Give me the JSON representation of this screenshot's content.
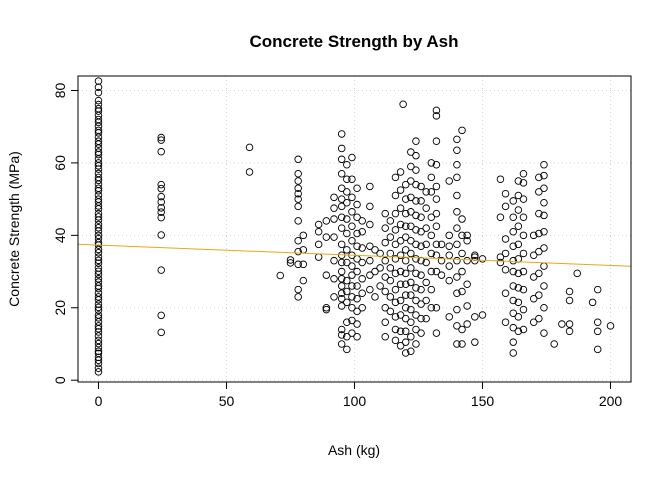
{
  "chart_data": {
    "type": "scatter",
    "title": "Concrete Strength by Ash",
    "xlabel": "Ash (kg)",
    "ylabel": "Concrete Strength (MPa)",
    "xlim": [
      -8,
      208
    ],
    "ylim": [
      -0.5,
      84
    ],
    "xticks": [
      0,
      50,
      100,
      150,
      200
    ],
    "yticks": [
      0,
      20,
      40,
      60,
      80
    ],
    "grid": true,
    "point_style": "open-circle",
    "trend_line": {
      "color": "#E6A817",
      "intercept": 37.3,
      "slope": -0.028
    },
    "columns": [
      {
        "x": 0,
        "y": [
          2.3,
          3.3,
          4.6,
          5.5,
          6.3,
          7.4,
          8.0,
          9.0,
          10.1,
          11.0,
          12.2,
          13.3,
          14.2,
          15.0,
          16.1,
          17.2,
          18.0,
          19.3,
          20.1,
          21.0,
          22.2,
          23.0,
          24.1,
          25.3,
          26.0,
          27.1,
          28.0,
          29.2,
          30.1,
          31.0,
          32.3,
          33.1,
          34.0,
          35.2,
          36.1,
          37.3,
          38.0,
          39.1,
          40.0,
          41.2,
          42.1,
          43.0,
          44.2,
          45.1,
          46.0,
          47.3,
          48.1,
          49.2,
          50.0,
          51.1,
          52.3,
          53.0,
          54.1,
          55.2,
          56.0,
          57.1,
          58.3,
          59.2,
          60.0,
          61.1,
          62.3,
          63.0,
          64.1,
          65.2,
          66.0,
          67.1,
          68.3,
          69.0,
          70.1,
          71.2,
          72.0,
          73.1,
          74.3,
          75.0,
          76.1,
          77.2,
          79.4,
          80.9,
          82.6
        ]
      },
      {
        "x": 24.5,
        "y": [
          13.2,
          17.9,
          30.4,
          40.1,
          44.9,
          46.4,
          47.6,
          49.2,
          50.7,
          52.9,
          54.0,
          63.1,
          66.3,
          67.0
        ]
      },
      {
        "x": 59,
        "y": [
          57.5,
          64.3
        ]
      },
      {
        "x": 71,
        "y": [
          28.9
        ]
      },
      {
        "x": 75,
        "y": [
          32.4,
          33.2
        ]
      },
      {
        "x": 78,
        "y": [
          23.0,
          25.0,
          32.0,
          35.5,
          38.5,
          44.0,
          48.0,
          50.0,
          51.5,
          53.0,
          55.0,
          57.0,
          61.0
        ]
      },
      {
        "x": 80,
        "y": [
          27.5,
          32.0,
          36.0,
          40.0
        ]
      },
      {
        "x": 86,
        "y": [
          34.0,
          37.5,
          41.0,
          43.0
        ]
      },
      {
        "x": 89,
        "y": [
          19.5,
          20.0,
          29.0,
          39.5,
          44.0
        ]
      },
      {
        "x": 92,
        "y": [
          23.0,
          28.0,
          33.0,
          39.5,
          44.5,
          47.5,
          50.5
        ]
      },
      {
        "x": 95,
        "y": [
          10.0,
          12.5,
          14.0,
          20.5,
          22.5,
          24.0,
          26.0,
          28.0,
          30.0,
          32.5,
          34.5,
          37.5,
          42.0,
          45.0,
          48.0,
          50.0,
          53.0,
          57.0,
          61.0,
          64.0,
          68.0
        ]
      },
      {
        "x": 97,
        "y": [
          8.5,
          12.0,
          16.0,
          21.5,
          24.5,
          27.5,
          32.5,
          36.0,
          40.5,
          44.5,
          49.0,
          52.0,
          55.5,
          59.5
        ]
      },
      {
        "x": 99,
        "y": [
          13.0,
          16.5,
          20.0,
          23.0,
          26.0,
          29.0,
          31.5,
          34.5,
          38.5,
          42.5,
          46.5,
          50.5,
          55.5,
          61.5
        ]
      },
      {
        "x": 101,
        "y": [
          12.0,
          15.5,
          19.0,
          22.5,
          26.0,
          30.0,
          33.5,
          37.0,
          40.5,
          45.0,
          48.5,
          53.0
        ]
      },
      {
        "x": 103,
        "y": [
          20.0,
          24.0,
          28.0,
          32.5,
          36.5,
          41.0,
          44.0
        ]
      },
      {
        "x": 106,
        "y": [
          25.0,
          29.0,
          33.0,
          37.0,
          43.0,
          48.0,
          53.5
        ]
      },
      {
        "x": 108,
        "y": [
          23.0,
          30.0,
          36.0
        ]
      },
      {
        "x": 110,
        "y": [
          26.0,
          31.0,
          35.0
        ]
      },
      {
        "x": 112,
        "y": [
          12.0,
          16.0,
          20.0,
          24.5,
          28.5,
          33.0,
          38.0,
          42.0,
          46.0
        ]
      },
      {
        "x": 114,
        "y": [
          19.0,
          23.0,
          27.5,
          31.0,
          35.0,
          39.5,
          44.0
        ]
      },
      {
        "x": 116,
        "y": [
          11.0,
          14.0,
          17.5,
          21.5,
          25.0,
          29.5,
          33.5,
          37.5,
          41.5,
          46.0,
          51.0,
          56.0
        ]
      },
      {
        "x": 118,
        "y": [
          9.5,
          13.5,
          18.0,
          22.0,
          26.5,
          30.0,
          34.5,
          38.5,
          43.0,
          47.5,
          52.5,
          57.5
        ]
      },
      {
        "x": 119,
        "y": [
          76.2
        ]
      },
      {
        "x": 120,
        "y": [
          7.5,
          10.5,
          13.5,
          17.0,
          20.0,
          23.5,
          26.5,
          29.5,
          33.0,
          36.0,
          39.5,
          42.5,
          46.0,
          50.0,
          54.0
        ]
      },
      {
        "x": 122,
        "y": [
          8.0,
          12.0,
          16.0,
          19.5,
          23.5,
          27.0,
          31.0,
          35.0,
          38.5,
          42.5,
          46.5,
          50.5,
          55.0,
          59.0,
          63.0
        ]
      },
      {
        "x": 124,
        "y": [
          10.0,
          14.0,
          18.0,
          22.0,
          25.5,
          29.5,
          33.5,
          37.5,
          41.5,
          45.5,
          49.5,
          54.0,
          58.0,
          62.0,
          66.0
        ]
      },
      {
        "x": 126,
        "y": [
          13.0,
          17.0,
          21.0,
          25.0,
          29.0,
          33.0,
          37.0,
          41.0,
          45.0,
          49.5,
          53.5
        ]
      },
      {
        "x": 128,
        "y": [
          17.0,
          22.0,
          27.0,
          32.5,
          37.5,
          42.0,
          47.5,
          52.0
        ]
      },
      {
        "x": 130,
        "y": [
          20.0,
          25.0,
          30.0,
          35.0,
          40.0,
          45.0,
          52.0,
          56.0,
          60.0
        ]
      },
      {
        "x": 132,
        "y": [
          13.0,
          20.0,
          30.0,
          34.5,
          37.5,
          42.5,
          46.0,
          50.0,
          53.5,
          59.5,
          66.0,
          73.0,
          74.5
        ]
      },
      {
        "x": 134,
        "y": [
          29.0,
          33.0,
          37.5
        ]
      },
      {
        "x": 137,
        "y": [
          17.5,
          27.5,
          31.5,
          34.5,
          37.0,
          40.0,
          55.0
        ]
      },
      {
        "x": 140,
        "y": [
          10.0,
          15.0,
          19.5,
          24.0,
          28.5,
          33.0,
          37.5,
          42.0,
          46.5,
          51.0,
          56.0,
          59.5,
          63.5,
          66.5
        ]
      },
      {
        "x": 142,
        "y": [
          10.0,
          14.0,
          24.5,
          30.0,
          35.0,
          40.0,
          44.5,
          69.0
        ]
      },
      {
        "x": 144,
        "y": [
          15.5,
          20.5,
          26.5,
          33.0,
          38.5,
          40.0
        ]
      },
      {
        "x": 147,
        "y": [
          10.5,
          17.5,
          33.0,
          34.0,
          34.5
        ]
      },
      {
        "x": 150,
        "y": [
          18.0,
          33.5
        ]
      },
      {
        "x": 157,
        "y": [
          32.5,
          34.0,
          45.0,
          55.5
        ]
      },
      {
        "x": 159,
        "y": [
          16.0,
          24.0,
          30.5,
          35.0,
          39.0,
          48.0,
          51.5
        ]
      },
      {
        "x": 162,
        "y": [
          7.5,
          10.5,
          14.5,
          18.5,
          22.0,
          26.0,
          30.0,
          33.0,
          37.0,
          41.0,
          45.0,
          49.5
        ]
      },
      {
        "x": 164,
        "y": [
          13.5,
          17.5,
          21.5,
          25.5,
          29.5,
          33.5,
          37.5,
          42.5,
          47.0,
          51.0,
          55.0
        ]
      },
      {
        "x": 166,
        "y": [
          14.0,
          19.5,
          25.0,
          30.0,
          35.0,
          40.0,
          45.0,
          50.0,
          54.5,
          57.0
        ]
      },
      {
        "x": 170,
        "y": [
          16.0,
          22.5,
          28.5,
          34.5,
          40.0
        ]
      },
      {
        "x": 172,
        "y": [
          17.0,
          23.5,
          29.5,
          35.5,
          40.5,
          46.0,
          52.0,
          56.0
        ]
      },
      {
        "x": 174,
        "y": [
          13.0,
          20.0,
          26.0,
          31.5,
          36.5,
          41.0,
          45.5,
          49.0,
          53.0,
          56.5,
          59.5
        ]
      },
      {
        "x": 178,
        "y": [
          10.0
        ]
      },
      {
        "x": 181,
        "y": [
          15.5
        ]
      },
      {
        "x": 184,
        "y": [
          13.5,
          15.5,
          22.0,
          24.5
        ]
      },
      {
        "x": 187,
        "y": [
          29.5
        ]
      },
      {
        "x": 193,
        "y": [
          21.5
        ]
      },
      {
        "x": 195,
        "y": [
          8.5,
          13.5,
          16.0,
          25.0
        ]
      },
      {
        "x": 200,
        "y": [
          15.0
        ]
      }
    ]
  }
}
